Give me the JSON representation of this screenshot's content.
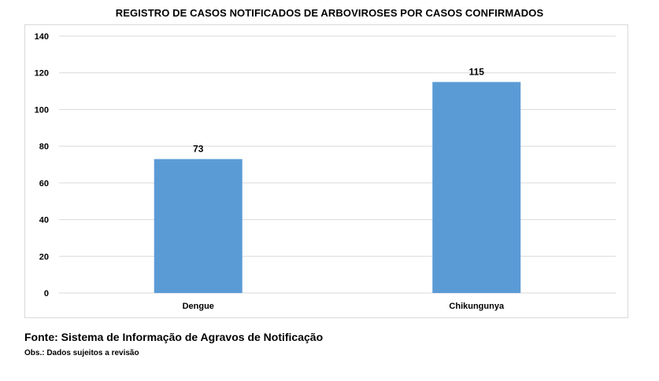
{
  "chart_data": {
    "type": "bar",
    "title": "REGISTRO DE CASOS NOTIFICADOS DE ARBOVIROSES POR CASOS CONFIRMADOS",
    "categories": [
      "Dengue",
      "Chikungunya"
    ],
    "values": [
      73,
      115
    ],
    "data_labels": [
      "73",
      "115"
    ],
    "ylim": [
      0,
      140
    ],
    "yticks": [
      0,
      20,
      40,
      60,
      80,
      100,
      120,
      140
    ],
    "grid": true,
    "bar_color": "#5b9bd5",
    "grid_color": "#d9d9d9"
  },
  "footer": {
    "source": "Fonte: Sistema de Informação de Agravos de Notificação",
    "note": "Obs.: Dados sujeitos a revisão"
  }
}
